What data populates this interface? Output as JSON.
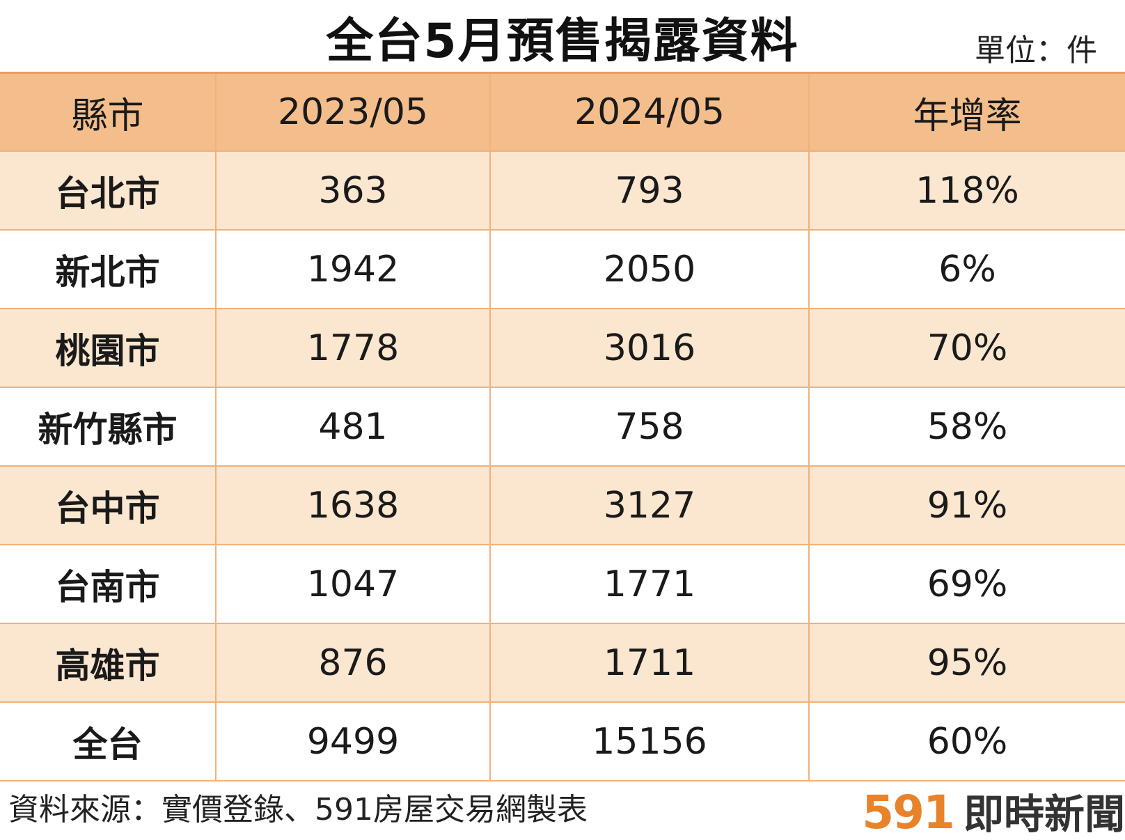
{
  "title": "全台5月預售揭露資料",
  "unit_label": "單位：件",
  "chart_data": {
    "type": "table",
    "title": "全台5月預售揭露資料",
    "columns": [
      "縣市",
      "2023/05",
      "2024/05",
      "年增率"
    ],
    "rows": [
      {
        "region": "台北市",
        "y2023": "363",
        "y2024": "793",
        "growth": "118%"
      },
      {
        "region": "新北市",
        "y2023": "1942",
        "y2024": "2050",
        "growth": "6%"
      },
      {
        "region": "桃園市",
        "y2023": "1778",
        "y2024": "3016",
        "growth": "70%"
      },
      {
        "region": "新竹縣市",
        "y2023": "481",
        "y2024": "758",
        "growth": "58%"
      },
      {
        "region": "台中市",
        "y2023": "1638",
        "y2024": "3127",
        "growth": "91%"
      },
      {
        "region": "台南市",
        "y2023": "1047",
        "y2024": "1771",
        "growth": "69%"
      },
      {
        "region": "高雄市",
        "y2023": "876",
        "y2024": "1711",
        "growth": "95%"
      },
      {
        "region": "全台",
        "y2023": "9499",
        "y2024": "15156",
        "growth": "60%"
      }
    ]
  },
  "source_note": "資料來源：實價登錄、591房屋交易網製表",
  "brand": {
    "number": "591",
    "text": "即時新聞"
  },
  "colors": {
    "header_bg": "#f4be8c",
    "stripe_bg": "#fbe6cf",
    "border": "#f0b27a",
    "brand_orange": "#e8832a"
  }
}
